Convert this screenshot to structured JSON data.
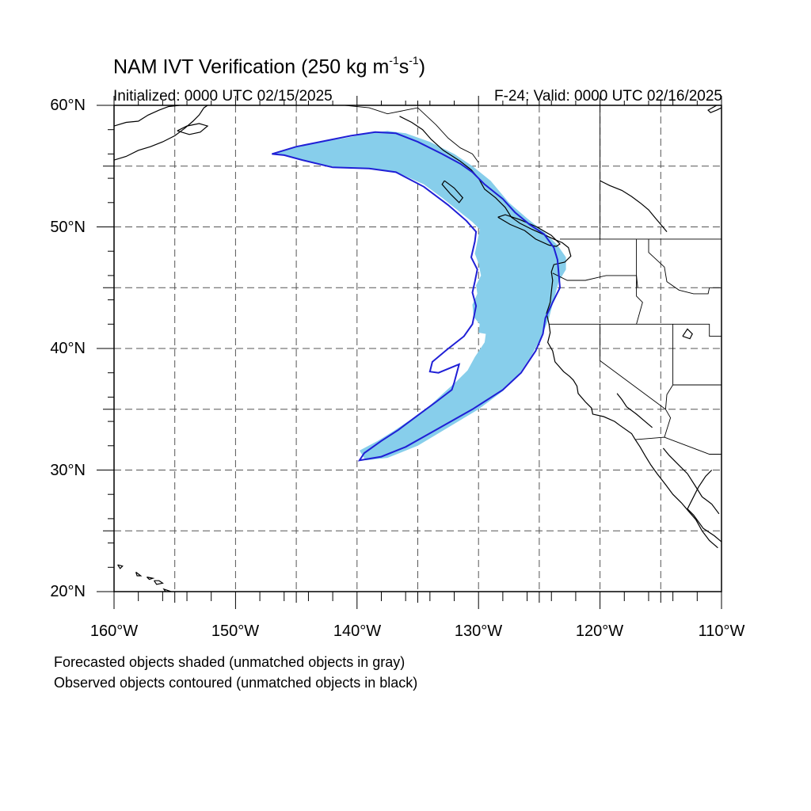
{
  "title": {
    "main_prefix": "NAM IVT Verification (250 kg m",
    "sup1": "-1",
    "mid": "s",
    "sup2": "-1",
    "suffix": ")"
  },
  "subtitle_left": "Initialized: 0000 UTC 02/15/2025",
  "subtitle_right": "F-24: Valid: 0000 UTC 02/16/2025",
  "captions": [
    "Forecasted objects shaded (unmatched objects in gray)",
    "Observed objects contoured (unmatched objects in black)"
  ],
  "axes": {
    "lat_labels": [
      "60°N",
      "50°N",
      "40°N",
      "30°N",
      "20°N"
    ],
    "lon_labels": [
      "160°W",
      "150°W",
      "140°W",
      "130°W",
      "120°W",
      "110°W"
    ],
    "lat_range": [
      20,
      60
    ],
    "lon_range": [
      -160,
      -110
    ],
    "grid_interval_deg": 5,
    "grid": true
  },
  "colors": {
    "forecast_fill": "#87ceeb",
    "observed_contour": "#1f1fd6",
    "coastline": "#000000"
  },
  "objects": {
    "forecast": {
      "status": "matched",
      "polygon_lonlat": [
        [
          -147.0,
          56.0
        ],
        [
          -145.5,
          56.5
        ],
        [
          -144.0,
          56.8
        ],
        [
          -141.0,
          57.3
        ],
        [
          -139.0,
          57.7
        ],
        [
          -137.5,
          57.9
        ],
        [
          -136.0,
          57.7
        ],
        [
          -134.0,
          57.0
        ],
        [
          -132.0,
          56.0
        ],
        [
          -130.5,
          55.0
        ],
        [
          -129.0,
          53.8
        ],
        [
          -127.5,
          52.0
        ],
        [
          -126.0,
          50.7
        ],
        [
          -124.5,
          49.5
        ],
        [
          -123.5,
          48.5
        ],
        [
          -122.8,
          47.5
        ],
        [
          -122.8,
          46.5
        ],
        [
          -123.4,
          45.5
        ],
        [
          -123.8,
          44.0
        ],
        [
          -124.2,
          42.5
        ],
        [
          -124.8,
          41.0
        ],
        [
          -125.6,
          39.5
        ],
        [
          -126.6,
          38.0
        ],
        [
          -128.0,
          36.5
        ],
        [
          -130.0,
          35.0
        ],
        [
          -132.5,
          33.5
        ],
        [
          -135.0,
          32.0
        ],
        [
          -137.5,
          31.0
        ],
        [
          -139.3,
          30.8
        ],
        [
          -139.8,
          31.6
        ],
        [
          -138.3,
          32.4
        ],
        [
          -137.0,
          33.2
        ],
        [
          -135.5,
          34.2
        ],
        [
          -134.0,
          35.3
        ],
        [
          -132.8,
          36.4
        ],
        [
          -131.8,
          37.3
        ],
        [
          -130.9,
          38.2
        ],
        [
          -130.3,
          39.3
        ],
        [
          -129.5,
          40.5
        ],
        [
          -129.4,
          41.2
        ],
        [
          -130.0,
          41.3
        ],
        [
          -129.9,
          42.0
        ],
        [
          -130.4,
          42.6
        ],
        [
          -130.5,
          43.6
        ],
        [
          -130.1,
          44.5
        ],
        [
          -130.2,
          45.2
        ],
        [
          -129.8,
          46.0
        ],
        [
          -130.0,
          47.0
        ],
        [
          -130.3,
          47.8
        ],
        [
          -130.1,
          48.8
        ],
        [
          -129.9,
          49.8
        ],
        [
          -130.5,
          50.4
        ],
        [
          -131.5,
          51.2
        ],
        [
          -133.0,
          52.4
        ],
        [
          -134.5,
          53.5
        ],
        [
          -136.5,
          54.4
        ],
        [
          -139.0,
          54.8
        ],
        [
          -141.5,
          54.9
        ],
        [
          -143.5,
          55.2
        ],
        [
          -145.5,
          55.8
        ]
      ]
    },
    "observed": {
      "status": "matched",
      "polygon_lonlat": [
        [
          -147.0,
          56.0
        ],
        [
          -145.0,
          56.6
        ],
        [
          -142.5,
          57.1
        ],
        [
          -140.5,
          57.5
        ],
        [
          -138.5,
          57.8
        ],
        [
          -136.8,
          57.7
        ],
        [
          -135.0,
          57.0
        ],
        [
          -133.0,
          56.0
        ],
        [
          -131.5,
          55.2
        ],
        [
          -130.5,
          54.5
        ],
        [
          -129.5,
          53.5
        ],
        [
          -128.0,
          52.3
        ],
        [
          -127.0,
          51.2
        ],
        [
          -125.8,
          50.2
        ],
        [
          -124.6,
          49.4
        ],
        [
          -123.8,
          48.3
        ],
        [
          -123.5,
          47.3
        ],
        [
          -123.4,
          46.2
        ],
        [
          -123.3,
          45.0
        ],
        [
          -123.9,
          43.8
        ],
        [
          -124.5,
          42.5
        ],
        [
          -124.7,
          41.2
        ],
        [
          -125.3,
          39.8
        ],
        [
          -126.5,
          38.0
        ],
        [
          -128.0,
          36.6
        ],
        [
          -130.5,
          35.0
        ],
        [
          -133.5,
          33.3
        ],
        [
          -136.0,
          31.9
        ],
        [
          -138.0,
          31.1
        ],
        [
          -139.8,
          30.8
        ],
        [
          -139.4,
          31.4
        ],
        [
          -138.0,
          32.4
        ],
        [
          -136.6,
          33.3
        ],
        [
          -135.0,
          34.5
        ],
        [
          -133.5,
          35.6
        ],
        [
          -132.2,
          36.6
        ],
        [
          -132.0,
          37.2
        ],
        [
          -131.6,
          38.7
        ],
        [
          -133.3,
          38.0
        ],
        [
          -134.0,
          38.1
        ],
        [
          -133.8,
          38.9
        ],
        [
          -132.6,
          39.9
        ],
        [
          -131.2,
          41.0
        ],
        [
          -130.5,
          42.0
        ],
        [
          -130.2,
          43.5
        ],
        [
          -130.5,
          44.6
        ],
        [
          -130.3,
          45.5
        ],
        [
          -130.1,
          46.5
        ],
        [
          -130.6,
          47.5
        ],
        [
          -130.3,
          48.8
        ],
        [
          -130.2,
          49.6
        ],
        [
          -131.0,
          50.5
        ],
        [
          -132.5,
          51.8
        ],
        [
          -134.5,
          53.3
        ],
        [
          -136.8,
          54.5
        ],
        [
          -139.0,
          54.8
        ],
        [
          -142.0,
          54.9
        ],
        [
          -144.5,
          55.5
        ],
        [
          -146.0,
          55.9
        ]
      ]
    }
  },
  "coastlines": [
    [
      [
        -160,
        58.3
      ],
      [
        -159,
        58.6
      ],
      [
        -158,
        58.7
      ],
      [
        -157.2,
        59.2
      ],
      [
        -156.3,
        59.6
      ],
      [
        -155.5,
        59.9
      ],
      [
        -154.6,
        60.0
      ]
    ],
    [
      [
        -160,
        55.5
      ],
      [
        -159,
        55.8
      ],
      [
        -158,
        56.3
      ],
      [
        -157,
        56.6
      ],
      [
        -156,
        57.0
      ],
      [
        -155,
        57.5
      ],
      [
        -154.2,
        58.1
      ],
      [
        -153.5,
        58.7
      ],
      [
        -153.0,
        59.2
      ],
      [
        -152.6,
        59.8
      ],
      [
        -152.3,
        60.0
      ]
    ],
    [
      [
        -154.8,
        57.9
      ],
      [
        -153.8,
        57.6
      ],
      [
        -152.9,
        57.8
      ],
      [
        -152.3,
        58.3
      ],
      [
        -153.0,
        58.5
      ],
      [
        -154.0,
        58.3
      ],
      [
        -154.8,
        57.9
      ]
    ],
    [
      [
        -136.5,
        59.1
      ],
      [
        -135.5,
        58.6
      ],
      [
        -134.6,
        58.0
      ],
      [
        -133.9,
        57.2
      ],
      [
        -132.9,
        56.3
      ],
      [
        -131.5,
        55.4
      ],
      [
        -130.6,
        54.7
      ],
      [
        -130.0,
        54.0
      ],
      [
        -129.5,
        53.1
      ],
      [
        -128.6,
        52.4
      ],
      [
        -127.8,
        51.6
      ],
      [
        -127.3,
        50.8
      ],
      [
        -126.6,
        50.3
      ],
      [
        -125.6,
        49.8
      ],
      [
        -124.7,
        49.4
      ],
      [
        -123.8,
        49.0
      ],
      [
        -123.1,
        48.7
      ],
      [
        -122.6,
        48.3
      ],
      [
        -122.4,
        47.6
      ],
      [
        -122.9,
        47.1
      ],
      [
        -123.8,
        46.9
      ],
      [
        -124.0,
        46.3
      ],
      [
        -123.9,
        45.6
      ],
      [
        -124.0,
        44.7
      ],
      [
        -124.1,
        43.8
      ],
      [
        -124.4,
        42.9
      ],
      [
        -124.2,
        42.0
      ],
      [
        -124.1,
        41.3
      ],
      [
        -124.3,
        40.5
      ],
      [
        -123.9,
        39.8
      ],
      [
        -123.7,
        38.9
      ],
      [
        -123.0,
        38.1
      ],
      [
        -122.5,
        37.7
      ],
      [
        -122.2,
        37.4
      ],
      [
        -121.9,
        36.9
      ],
      [
        -121.8,
        36.3
      ],
      [
        -121.2,
        35.6
      ],
      [
        -120.7,
        35.1
      ],
      [
        -120.6,
        34.6
      ],
      [
        -119.7,
        34.4
      ],
      [
        -118.8,
        34.0
      ],
      [
        -118.4,
        33.7
      ],
      [
        -117.4,
        33.0
      ],
      [
        -117.1,
        32.5
      ],
      [
        -116.7,
        31.9
      ],
      [
        -116.3,
        31.2
      ],
      [
        -115.8,
        30.4
      ],
      [
        -115.3,
        29.7
      ],
      [
        -114.6,
        28.8
      ],
      [
        -114.0,
        28.0
      ],
      [
        -113.3,
        27.3
      ],
      [
        -112.7,
        26.6
      ],
      [
        -112.1,
        25.9
      ],
      [
        -111.6,
        25.0
      ],
      [
        -111.0,
        24.2
      ],
      [
        -110.3,
        23.6
      ]
    ],
    [
      [
        -110.8,
        30.0
      ],
      [
        -111.3,
        29.5
      ],
      [
        -111.9,
        28.6
      ],
      [
        -112.4,
        27.6
      ],
      [
        -112.8,
        26.8
      ],
      [
        -112.3,
        26.3
      ],
      [
        -111.5,
        25.2
      ],
      [
        -110.6,
        24.6
      ],
      [
        -110.0,
        24.1
      ]
    ],
    [
      [
        -114.8,
        31.8
      ],
      [
        -114.3,
        31.2
      ],
      [
        -113.5,
        30.4
      ],
      [
        -112.8,
        29.7
      ],
      [
        -112.1,
        28.6
      ],
      [
        -111.6,
        27.8
      ],
      [
        -110.8,
        27.2
      ],
      [
        -110.2,
        26.4
      ]
    ],
    [
      [
        -132.8,
        53.8
      ],
      [
        -132.0,
        53.2
      ],
      [
        -131.3,
        52.4
      ],
      [
        -131.6,
        52.0
      ],
      [
        -132.3,
        52.7
      ],
      [
        -133.0,
        53.5
      ],
      [
        -132.8,
        53.8
      ]
    ],
    [
      [
        -128.4,
        50.8
      ],
      [
        -127.4,
        50.2
      ],
      [
        -126.2,
        49.7
      ],
      [
        -125.3,
        49.0
      ],
      [
        -124.2,
        48.5
      ],
      [
        -123.6,
        48.4
      ],
      [
        -123.3,
        48.6
      ],
      [
        -124.0,
        49.3
      ],
      [
        -125.2,
        50.0
      ],
      [
        -126.6,
        50.6
      ],
      [
        -127.8,
        51.0
      ],
      [
        -128.4,
        50.8
      ]
    ],
    [
      [
        -155.3,
        20.0
      ],
      [
        -155.9,
        20.2
      ],
      [
        -155.7,
        19.9
      ],
      [
        -155.3,
        20.0
      ]
    ],
    [
      [
        -156.7,
        20.9
      ],
      [
        -156.3,
        20.9
      ],
      [
        -156.0,
        20.7
      ],
      [
        -156.5,
        20.6
      ],
      [
        -156.7,
        20.9
      ]
    ],
    [
      [
        -157.3,
        21.2
      ],
      [
        -156.8,
        21.1
      ],
      [
        -157.1,
        21.0
      ],
      [
        -157.3,
        21.2
      ]
    ],
    [
      [
        -158.2,
        21.6
      ],
      [
        -157.8,
        21.3
      ],
      [
        -158.1,
        21.3
      ],
      [
        -158.2,
        21.6
      ]
    ],
    [
      [
        -159.7,
        22.2
      ],
      [
        -159.3,
        22.1
      ],
      [
        -159.5,
        21.9
      ],
      [
        -159.7,
        22.2
      ]
    ],
    [
      [
        -110,
        59.8
      ],
      [
        -110.4,
        59.6
      ],
      [
        -110.9,
        59.4
      ],
      [
        -111.1,
        59.6
      ],
      [
        -110.4,
        60.0
      ]
    ],
    [
      [
        -120,
        53.8
      ],
      [
        -119.2,
        53.4
      ],
      [
        -118.2,
        53.0
      ],
      [
        -117.4,
        52.5
      ],
      [
        -116.6,
        51.9
      ],
      [
        -116.0,
        51.4
      ],
      [
        -115.5,
        50.8
      ],
      [
        -115.0,
        50.2
      ],
      [
        -114.5,
        49.6
      ]
    ],
    [
      [
        -118.6,
        36.3
      ],
      [
        -118.2,
        35.8
      ],
      [
        -117.8,
        35.2
      ],
      [
        -117.0,
        34.6
      ],
      [
        -116.3,
        34.0
      ],
      [
        -115.7,
        33.5
      ]
    ],
    [
      [
        -113.2,
        41.0
      ],
      [
        -112.6,
        40.8
      ],
      [
        -112.4,
        41.2
      ],
      [
        -112.8,
        41.6
      ],
      [
        -113.2,
        41.0
      ]
    ]
  ],
  "borders": [
    [
      [
        -141,
        60
      ],
      [
        -139,
        59.8
      ],
      [
        -137.5,
        59.3
      ],
      [
        -136,
        59.6
      ],
      [
        -135,
        59.8
      ],
      [
        -133.5,
        58.4
      ],
      [
        -132.5,
        57.3
      ],
      [
        -131.5,
        56.5
      ],
      [
        -130.5,
        56.0
      ],
      [
        -130.0,
        55.3
      ]
    ],
    [
      [
        -123.3,
        49.0
      ],
      [
        -110,
        49.0
      ]
    ],
    [
      [
        -120.0,
        60
      ],
      [
        -120.0,
        49.0
      ]
    ],
    [
      [
        -124.2,
        42.0
      ],
      [
        -111.0,
        42.0
      ],
      [
        -111.0,
        41.0
      ],
      [
        -110,
        41.0
      ]
    ],
    [
      [
        -120.0,
        42.0
      ],
      [
        -120.0,
        39.0
      ],
      [
        -114.6,
        35.0
      ]
    ],
    [
      [
        -123.9,
        46.2
      ],
      [
        -122.7,
        45.6
      ],
      [
        -121.2,
        45.6
      ],
      [
        -119.5,
        46.0
      ],
      [
        -117.0,
        46.0
      ],
      [
        -116.9,
        45.0
      ]
    ],
    [
      [
        -117.0,
        49.0
      ],
      [
        -117.0,
        44.3
      ],
      [
        -116.5,
        43.8
      ],
      [
        -117.0,
        42.0
      ]
    ],
    [
      [
        -116.0,
        49.0
      ],
      [
        -116.0,
        47.9
      ],
      [
        -114.7,
        46.7
      ],
      [
        -114.5,
        45.5
      ],
      [
        -113.5,
        44.8
      ],
      [
        -112.3,
        44.5
      ],
      [
        -111.1,
        44.5
      ],
      [
        -111.0,
        45.0
      ],
      [
        -110,
        45.0
      ]
    ],
    [
      [
        -114.0,
        42.0
      ],
      [
        -114.0,
        37.0
      ],
      [
        -114.5,
        36.2
      ],
      [
        -114.6,
        35.0
      ],
      [
        -114.2,
        34.3
      ],
      [
        -114.7,
        32.7
      ]
    ],
    [
      [
        -117.1,
        32.5
      ],
      [
        -114.7,
        32.7
      ],
      [
        -111.0,
        31.3
      ],
      [
        -110,
        31.3
      ]
    ],
    [
      [
        -114.0,
        37.0
      ],
      [
        -110,
        37.0
      ]
    ]
  ]
}
